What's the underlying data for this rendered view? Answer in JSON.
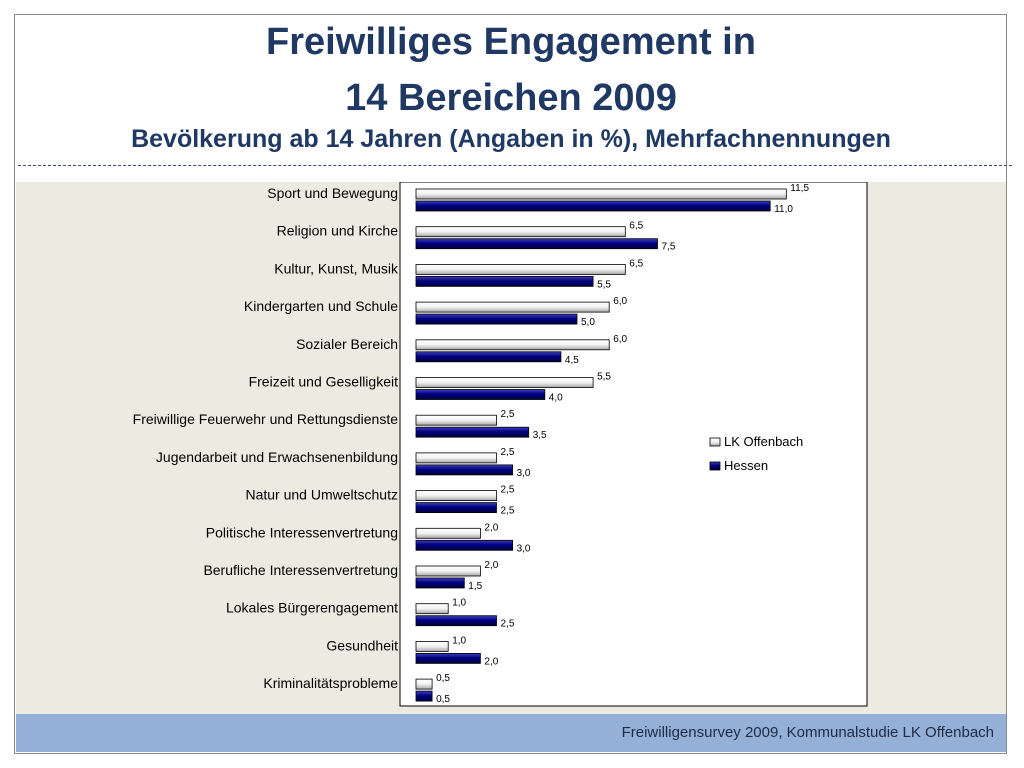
{
  "slide": {
    "title_line_1": "Freiwilliges Engagement in",
    "title_line_2": "14 Bereichen 2009",
    "subtitle": "Bevölkerung ab 14 Jahren (Angaben in %), Mehrfachnennungen",
    "footer": "Freiwilligensurvey 2009, Kommunalstudie LK Offenbach"
  },
  "colors": {
    "title": "#1f3864",
    "series_lk": "#ffffff",
    "series_hessen": "#000080",
    "content_background": "#edeae1",
    "footer_background": "#94b0d6"
  },
  "chart_data": {
    "type": "bar",
    "orientation": "horizontal",
    "grid": false,
    "legend_position": "right",
    "categories": [
      "Sport und Bewegung",
      "Religion und Kirche",
      "Kultur, Kunst, Musik",
      "Kindergarten und Schule",
      "Sozialer Bereich",
      "Freizeit und Geselligkeit",
      "Freiwillige Feuerwehr und Rettungsdienste",
      "Jugendarbeit und  Erwachsenenbildung",
      "Natur und Umweltschutz",
      "Politische Interessenvertretung",
      "Berufliche Interessenvertretung",
      "Lokales Bürgerengagement",
      "Gesundheit",
      "Kriminalitätsprobleme"
    ],
    "series": [
      {
        "name": "LK Offenbach",
        "values": [
          11.5,
          6.5,
          6.5,
          6.0,
          6.0,
          5.5,
          2.5,
          2.5,
          2.5,
          2.0,
          2.0,
          1.0,
          1.0,
          0.5
        ],
        "labels": [
          "11,5",
          "6,5",
          "6,5",
          "6,0",
          "6,0",
          "5,5",
          "2,5",
          "2,5",
          "2,5",
          "2,0",
          "2,0",
          "1,0",
          "1,0",
          "0,5"
        ]
      },
      {
        "name": "Hessen",
        "values": [
          11.0,
          7.5,
          5.5,
          5.0,
          4.5,
          4.0,
          3.5,
          3.0,
          2.5,
          3.0,
          1.5,
          2.5,
          2.0,
          0.5
        ],
        "labels": [
          "11,0",
          "7,5",
          "5,5",
          "5,0",
          "4,5",
          "4,0",
          "3,5",
          "3,0",
          "2,5",
          "3,0",
          "1,5",
          "2,5",
          "2,0",
          "0,5"
        ]
      }
    ]
  }
}
